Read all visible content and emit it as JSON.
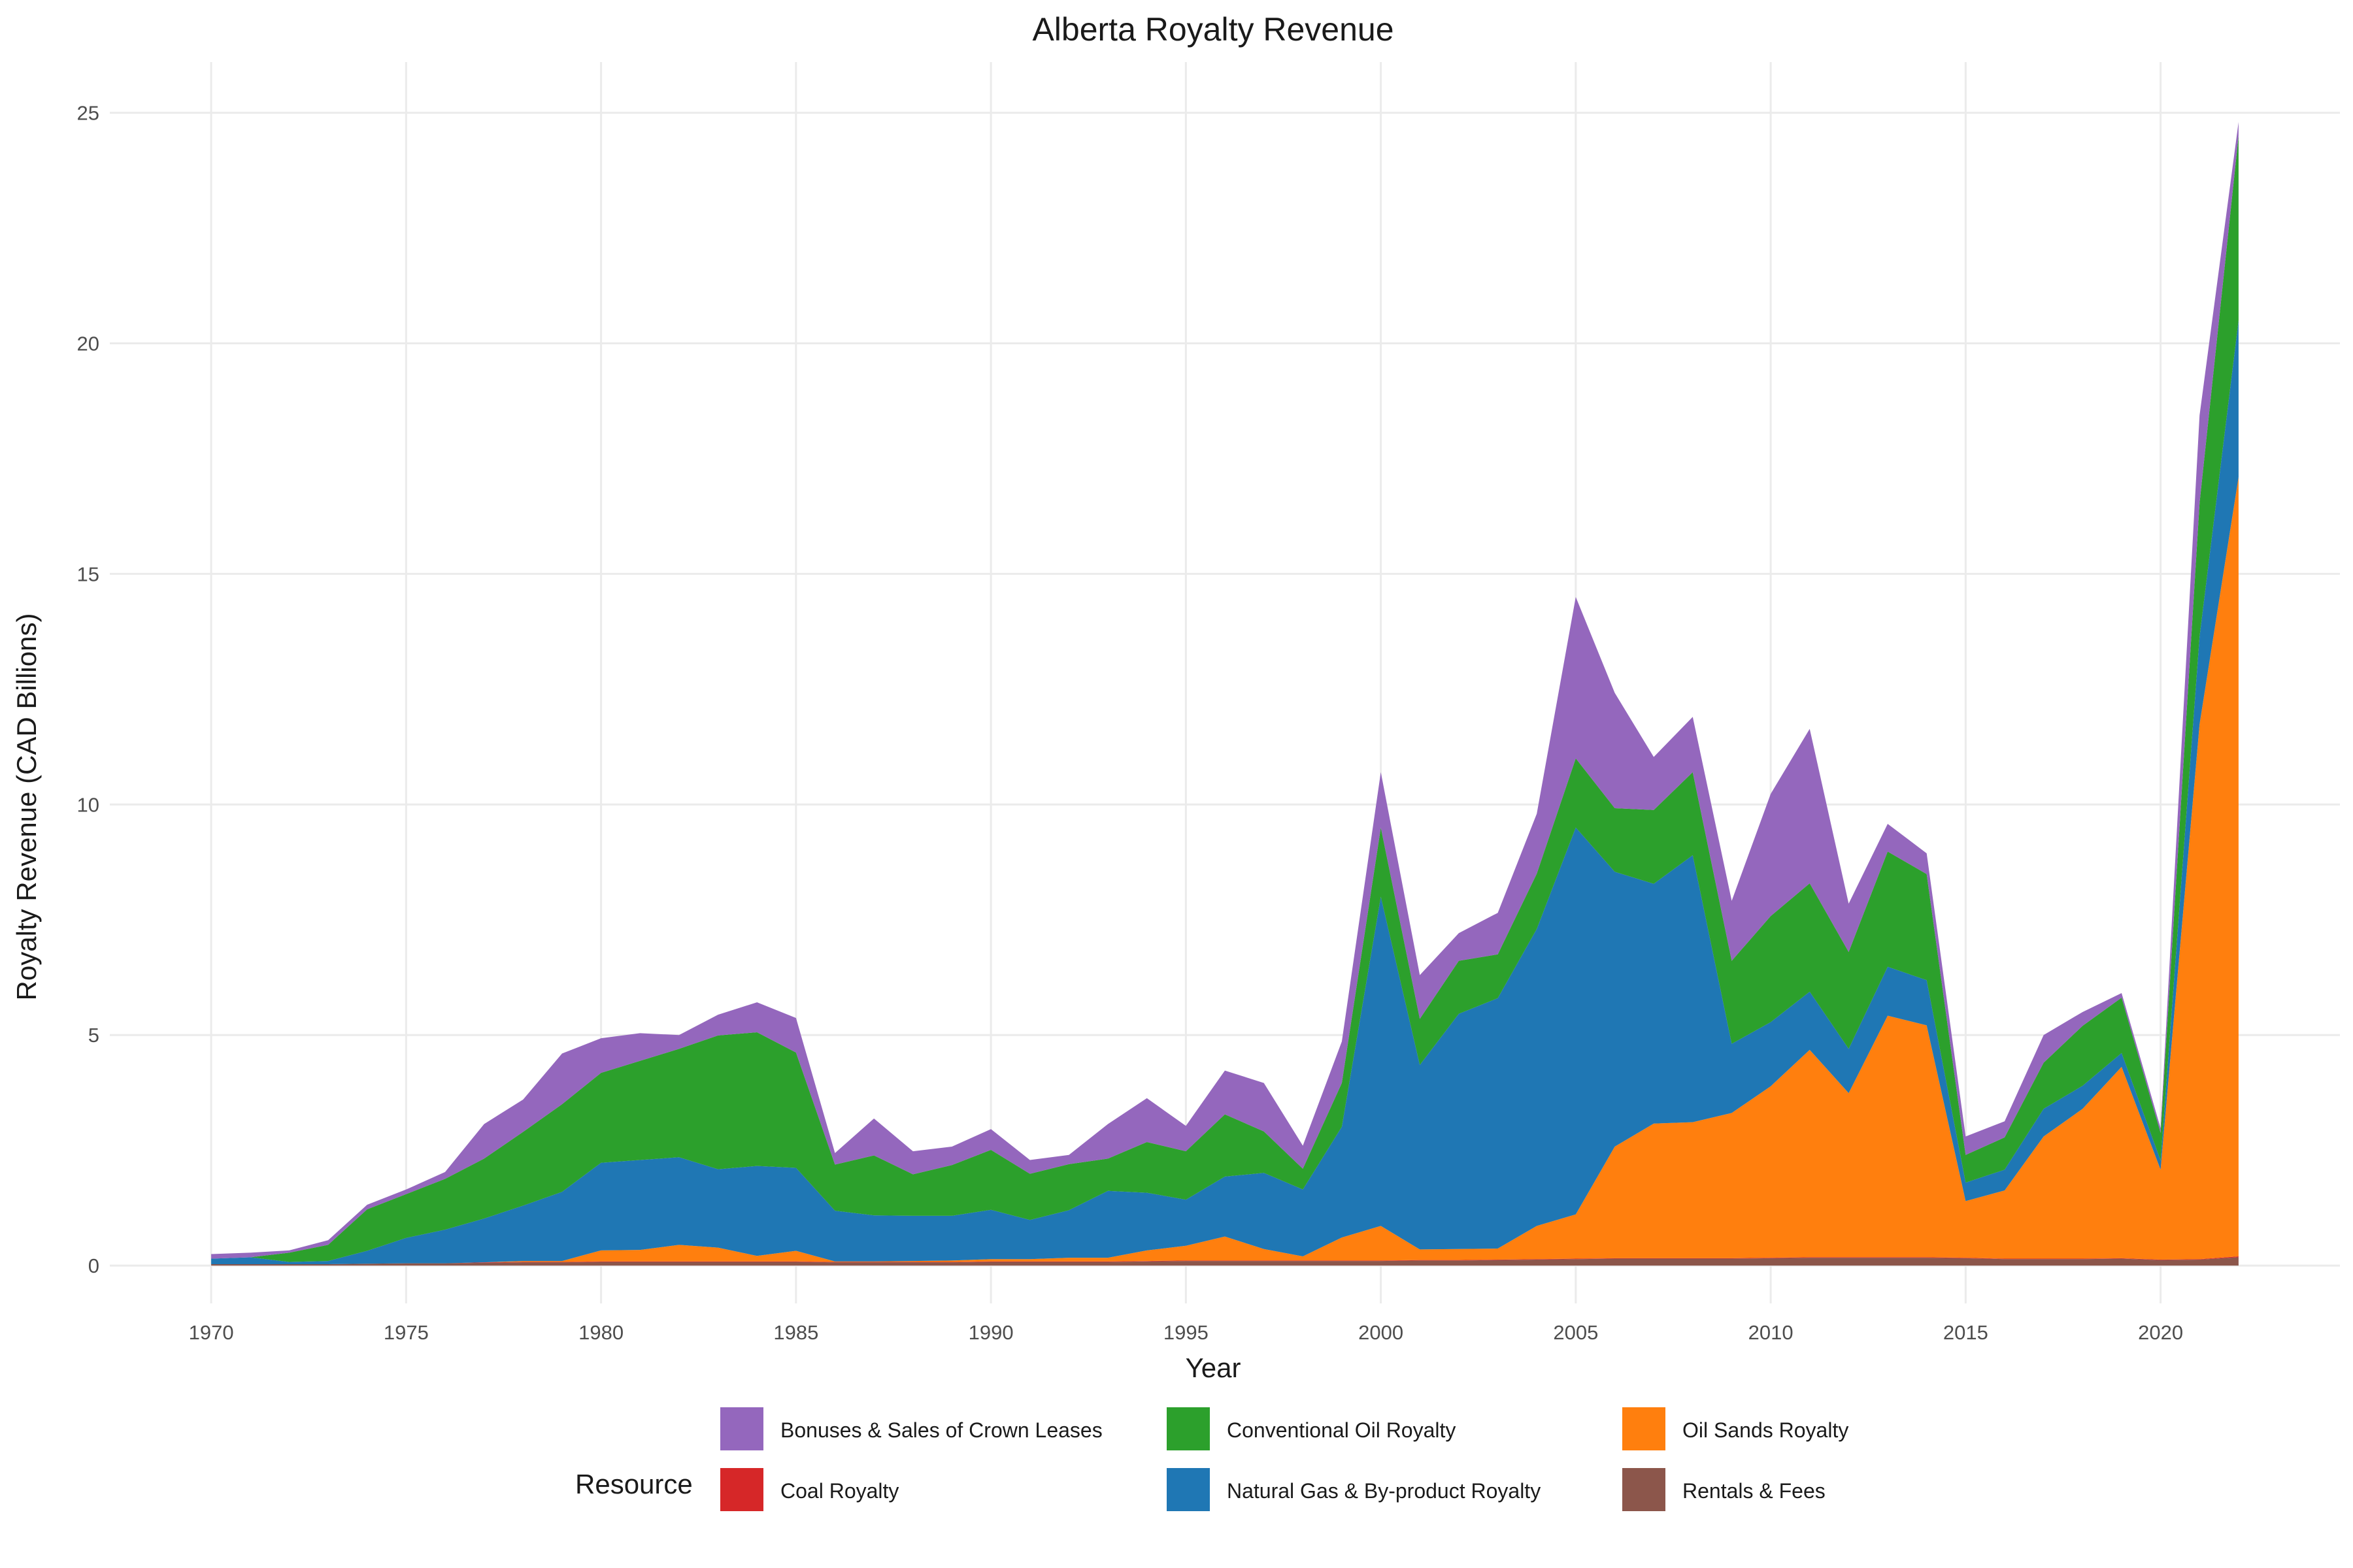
{
  "chart_data": {
    "type": "area",
    "stacked": true,
    "title": "Alberta Royalty Revenue",
    "xlabel": "Year",
    "ylabel": "Royalty Revenue (CAD Billions)",
    "xlim": [
      1970,
      2022
    ],
    "ylim": [
      0,
      25
    ],
    "x_ticks": [
      1970,
      1975,
      1980,
      1985,
      1990,
      1995,
      2000,
      2005,
      2010,
      2015,
      2020
    ],
    "y_ticks": [
      0,
      5,
      10,
      15,
      20,
      25
    ],
    "grid": true,
    "legend_title": "Resource",
    "legend_position": "bottom",
    "years": [
      1970,
      1971,
      1972,
      1973,
      1974,
      1975,
      1976,
      1977,
      1978,
      1979,
      1980,
      1981,
      1982,
      1983,
      1984,
      1985,
      1986,
      1987,
      1988,
      1989,
      1990,
      1991,
      1992,
      1993,
      1994,
      1995,
      1996,
      1997,
      1998,
      1999,
      2000,
      2001,
      2002,
      2003,
      2004,
      2005,
      2006,
      2007,
      2008,
      2009,
      2010,
      2011,
      2012,
      2013,
      2014,
      2015,
      2016,
      2017,
      2018,
      2019,
      2020,
      2021,
      2022
    ],
    "series": [
      {
        "name": "Rentals & Fees",
        "color": "#8c564b",
        "values": [
          0.03,
          0.03,
          0.03,
          0.03,
          0.04,
          0.05,
          0.05,
          0.06,
          0.07,
          0.07,
          0.08,
          0.08,
          0.08,
          0.08,
          0.08,
          0.08,
          0.07,
          0.07,
          0.07,
          0.07,
          0.08,
          0.08,
          0.08,
          0.08,
          0.09,
          0.1,
          0.1,
          0.1,
          0.1,
          0.1,
          0.1,
          0.11,
          0.11,
          0.12,
          0.13,
          0.14,
          0.15,
          0.15,
          0.15,
          0.15,
          0.16,
          0.17,
          0.17,
          0.17,
          0.17,
          0.16,
          0.14,
          0.14,
          0.14,
          0.15,
          0.12,
          0.13,
          0.18
        ]
      },
      {
        "name": "Coal Royalty",
        "color": "#d62728",
        "values": [
          0.0,
          0.0,
          0.0,
          0.0,
          0.0,
          0.0,
          0.0,
          0.01,
          0.01,
          0.01,
          0.01,
          0.01,
          0.01,
          0.01,
          0.01,
          0.01,
          0.01,
          0.01,
          0.01,
          0.01,
          0.01,
          0.01,
          0.01,
          0.01,
          0.01,
          0.01,
          0.01,
          0.01,
          0.01,
          0.01,
          0.01,
          0.01,
          0.01,
          0.01,
          0.01,
          0.01,
          0.01,
          0.01,
          0.01,
          0.01,
          0.01,
          0.01,
          0.01,
          0.01,
          0.01,
          0.01,
          0.01,
          0.01,
          0.01,
          0.01,
          0.01,
          0.01,
          0.02
        ]
      },
      {
        "name": "Oil Sands Royalty",
        "color": "#ff7f0e",
        "values": [
          0.0,
          0.0,
          0.0,
          0.0,
          0.0,
          0.0,
          0.0,
          0.0,
          0.02,
          0.02,
          0.24,
          0.25,
          0.36,
          0.3,
          0.12,
          0.23,
          0.01,
          0.01,
          0.02,
          0.03,
          0.05,
          0.05,
          0.08,
          0.08,
          0.23,
          0.32,
          0.52,
          0.25,
          0.09,
          0.5,
          0.75,
          0.23,
          0.24,
          0.24,
          0.72,
          0.96,
          2.42,
          2.92,
          2.95,
          3.15,
          3.72,
          4.5,
          3.56,
          5.24,
          5.03,
          1.23,
          1.48,
          2.65,
          3.25,
          4.15,
          1.95,
          11.6,
          16.9
        ]
      },
      {
        "name": "Natural Gas & By-product Royalty",
        "color": "#1f77b4",
        "values": [
          0.12,
          0.15,
          0.05,
          0.07,
          0.28,
          0.55,
          0.73,
          0.95,
          1.2,
          1.5,
          1.9,
          1.95,
          1.9,
          1.7,
          1.95,
          1.8,
          1.1,
          1.0,
          0.98,
          0.97,
          1.07,
          0.85,
          1.03,
          1.45,
          1.25,
          1.0,
          1.3,
          1.65,
          1.45,
          2.4,
          7.14,
          4.0,
          5.1,
          5.43,
          6.44,
          8.39,
          5.96,
          5.2,
          5.79,
          1.5,
          1.39,
          1.26,
          0.96,
          1.06,
          0.98,
          0.4,
          0.45,
          0.6,
          0.5,
          0.3,
          0.2,
          1.9,
          3.4
        ]
      },
      {
        "name": "Conventional Oil Royalty",
        "color": "#2ca02c",
        "values": [
          0.0,
          0.0,
          0.2,
          0.35,
          0.9,
          0.95,
          1.1,
          1.3,
          1.6,
          1.9,
          1.95,
          2.15,
          2.35,
          2.9,
          2.9,
          2.5,
          1.0,
          1.3,
          0.9,
          1.1,
          1.3,
          1.0,
          1.0,
          0.7,
          1.1,
          1.05,
          1.35,
          0.9,
          0.45,
          0.95,
          1.5,
          1.0,
          1.15,
          0.95,
          1.2,
          1.5,
          1.38,
          1.6,
          1.8,
          1.8,
          2.3,
          2.35,
          2.1,
          2.5,
          2.3,
          0.6,
          0.7,
          1.0,
          1.3,
          1.2,
          0.6,
          2.9,
          4.0
        ]
      },
      {
        "name": "Bonuses & Sales of Crown Leases",
        "color": "#9467bd",
        "values": [
          0.1,
          0.1,
          0.05,
          0.1,
          0.1,
          0.1,
          0.15,
          0.75,
          0.7,
          1.1,
          0.75,
          0.6,
          0.3,
          0.45,
          0.65,
          0.75,
          0.25,
          0.8,
          0.5,
          0.4,
          0.45,
          0.3,
          0.2,
          0.75,
          0.95,
          0.55,
          0.95,
          1.05,
          0.5,
          0.9,
          1.2,
          0.95,
          0.6,
          0.9,
          1.3,
          3.5,
          2.5,
          1.15,
          1.2,
          1.3,
          2.65,
          3.35,
          1.05,
          0.6,
          0.45,
          0.4,
          0.35,
          0.6,
          0.3,
          0.1,
          0.1,
          1.9,
          0.3
        ]
      }
    ],
    "legend_entries": [
      "Bonuses & Sales of Crown Leases",
      "Conventional Oil Royalty",
      "Oil Sands Royalty",
      "Coal Royalty",
      "Natural Gas & By-product Royalty",
      "Rentals & Fees"
    ]
  }
}
